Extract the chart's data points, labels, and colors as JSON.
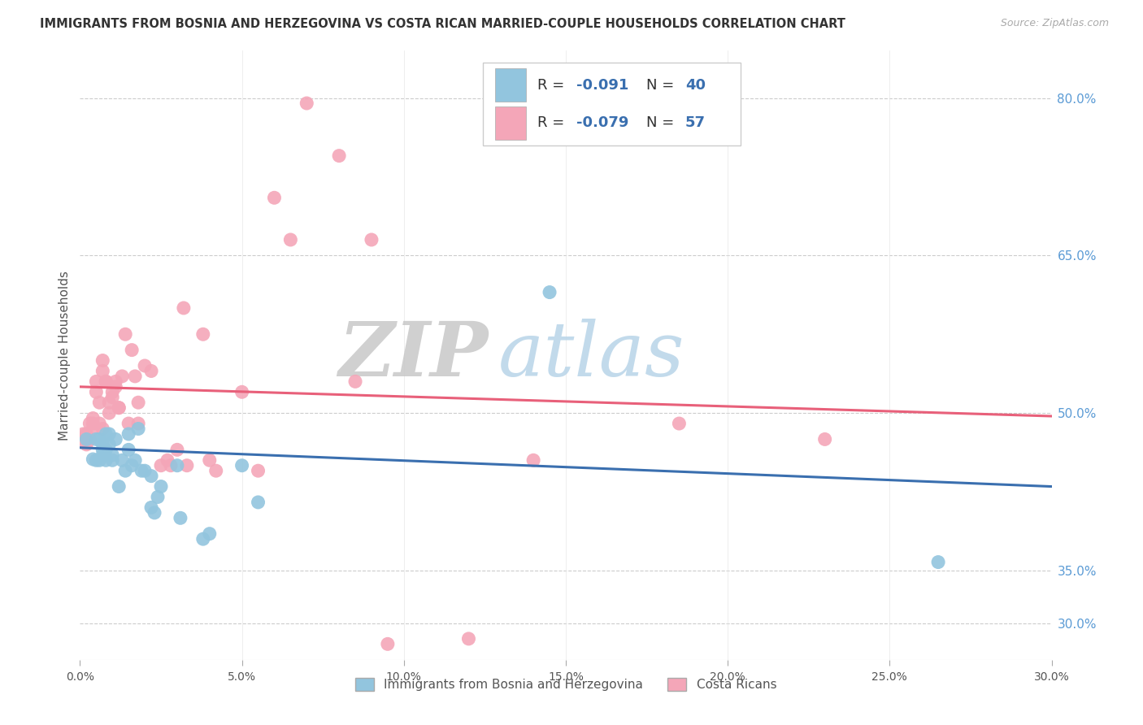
{
  "title": "IMMIGRANTS FROM BOSNIA AND HERZEGOVINA VS COSTA RICAN MARRIED-COUPLE HOUSEHOLDS CORRELATION CHART",
  "source": "Source: ZipAtlas.com",
  "ylabel": "Married-couple Households",
  "ytick_vals": [
    0.8,
    0.65,
    0.5,
    0.35,
    0.3
  ],
  "xmin": 0.0,
  "xmax": 0.3,
  "ymin": 0.265,
  "ymax": 0.845,
  "legend_blue_R": "-0.091",
  "legend_blue_N": "40",
  "legend_pink_R": "-0.079",
  "legend_pink_N": "57",
  "blue_color": "#92c5de",
  "pink_color": "#f4a6b8",
  "blue_line_color": "#3a6faf",
  "pink_line_color": "#e8607a",
  "blue_trend_y0": 0.467,
  "blue_trend_y1": 0.43,
  "pink_trend_y0": 0.525,
  "pink_trend_y1": 0.497,
  "watermark_zip": "ZIP",
  "watermark_atlas": "atlas",
  "watermark_zip_color": "#c8c8c8",
  "watermark_atlas_color": "#b8d4e8",
  "legend_text_color": "#3a6faf",
  "legend_label_color": "#333333",
  "blue_scatter_x": [
    0.002,
    0.004,
    0.005,
    0.005,
    0.006,
    0.006,
    0.007,
    0.007,
    0.007,
    0.008,
    0.008,
    0.008,
    0.009,
    0.009,
    0.01,
    0.01,
    0.011,
    0.012,
    0.013,
    0.014,
    0.015,
    0.015,
    0.016,
    0.017,
    0.018,
    0.019,
    0.02,
    0.022,
    0.022,
    0.023,
    0.024,
    0.025,
    0.03,
    0.031,
    0.038,
    0.04,
    0.05,
    0.055,
    0.145,
    0.265
  ],
  "blue_scatter_y": [
    0.475,
    0.456,
    0.455,
    0.475,
    0.455,
    0.475,
    0.46,
    0.47,
    0.465,
    0.455,
    0.465,
    0.48,
    0.47,
    0.48,
    0.46,
    0.455,
    0.475,
    0.43,
    0.455,
    0.445,
    0.465,
    0.48,
    0.45,
    0.455,
    0.485,
    0.445,
    0.445,
    0.41,
    0.44,
    0.405,
    0.42,
    0.43,
    0.45,
    0.4,
    0.38,
    0.385,
    0.45,
    0.415,
    0.615,
    0.358
  ],
  "pink_scatter_x": [
    0.001,
    0.001,
    0.002,
    0.002,
    0.003,
    0.003,
    0.004,
    0.004,
    0.004,
    0.005,
    0.005,
    0.006,
    0.006,
    0.007,
    0.007,
    0.007,
    0.008,
    0.008,
    0.009,
    0.009,
    0.01,
    0.01,
    0.011,
    0.011,
    0.012,
    0.012,
    0.013,
    0.014,
    0.015,
    0.016,
    0.017,
    0.018,
    0.018,
    0.02,
    0.022,
    0.025,
    0.027,
    0.028,
    0.03,
    0.032,
    0.033,
    0.038,
    0.04,
    0.042,
    0.05,
    0.055,
    0.06,
    0.065,
    0.07,
    0.08,
    0.085,
    0.09,
    0.095,
    0.12,
    0.14,
    0.185,
    0.23
  ],
  "pink_scatter_y": [
    0.475,
    0.48,
    0.47,
    0.48,
    0.475,
    0.49,
    0.485,
    0.495,
    0.49,
    0.52,
    0.53,
    0.49,
    0.51,
    0.55,
    0.54,
    0.485,
    0.53,
    0.53,
    0.5,
    0.51,
    0.515,
    0.52,
    0.525,
    0.53,
    0.505,
    0.505,
    0.535,
    0.575,
    0.49,
    0.56,
    0.535,
    0.49,
    0.51,
    0.545,
    0.54,
    0.45,
    0.455,
    0.45,
    0.465,
    0.6,
    0.45,
    0.575,
    0.455,
    0.445,
    0.52,
    0.445,
    0.705,
    0.665,
    0.795,
    0.745,
    0.53,
    0.665,
    0.28,
    0.285,
    0.455,
    0.49,
    0.475
  ]
}
